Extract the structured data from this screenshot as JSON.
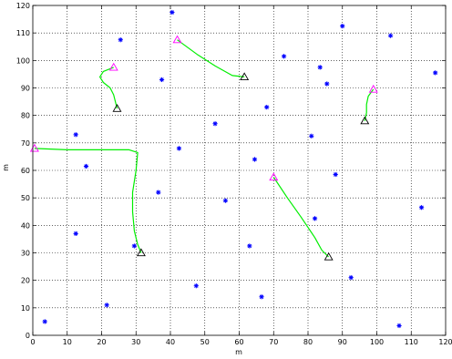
{
  "chart_data": {
    "type": "scatter",
    "title": "",
    "xlabel": "m",
    "ylabel": "m",
    "xlim": [
      0,
      120
    ],
    "ylim": [
      0,
      120
    ],
    "xticks": [
      0,
      10,
      20,
      30,
      40,
      50,
      60,
      70,
      80,
      90,
      100,
      110,
      120
    ],
    "yticks": [
      0,
      10,
      20,
      30,
      40,
      50,
      60,
      70,
      80,
      90,
      100,
      110,
      120
    ],
    "grid": true,
    "grid_style": "dotted",
    "colors": {
      "points": "#0000ff",
      "paths": "#00ee00",
      "start_markers": "#ff00ff",
      "end_markers": "#000000"
    },
    "series": [
      {
        "marker": "asterisk",
        "points": [
          [
            3.5,
            5
          ],
          [
            12.5,
            73
          ],
          [
            12.5,
            37
          ],
          [
            15.5,
            61.5
          ],
          [
            21.5,
            11
          ],
          [
            25.5,
            107.5
          ],
          [
            29.5,
            32.5
          ],
          [
            36.5,
            52
          ],
          [
            37.5,
            93
          ],
          [
            40.5,
            117.5
          ],
          [
            42.5,
            68
          ],
          [
            47.5,
            18
          ],
          [
            53,
            77
          ],
          [
            56,
            49
          ],
          [
            63,
            32.5
          ],
          [
            64.5,
            64
          ],
          [
            66.5,
            14
          ],
          [
            68,
            83
          ],
          [
            73,
            101.5
          ],
          [
            81,
            72.5
          ],
          [
            82,
            42.5
          ],
          [
            83.5,
            97.5
          ],
          [
            85.5,
            91.5
          ],
          [
            88,
            58.5
          ],
          [
            90,
            112.5
          ],
          [
            92.5,
            21
          ],
          [
            104,
            109
          ],
          [
            106.5,
            3.5
          ],
          [
            113,
            46.5
          ],
          [
            117,
            95.5
          ]
        ]
      },
      {
        "marker": "triangle-path",
        "paths": [
          {
            "start": [
              23.5,
              97.5
            ],
            "end": [
              24.5,
              82.5
            ],
            "path": [
              [
                23.5,
                97.5
              ],
              [
                20.5,
                96
              ],
              [
                19.5,
                94
              ],
              [
                20.5,
                92
              ],
              [
                22.5,
                90
              ],
              [
                23.5,
                87.5
              ],
              [
                24,
                85
              ],
              [
                24.5,
                82.5
              ]
            ]
          },
          {
            "start": [
              42,
              107.5
            ],
            "end": [
              61.5,
              94
            ],
            "path": [
              [
                42,
                107.5
              ],
              [
                48,
                102
              ],
              [
                53,
                98
              ],
              [
                58,
                94.5
              ],
              [
                61.5,
                94
              ]
            ]
          },
          {
            "start": [
              0.5,
              68
            ],
            "end": [
              31.5,
              30
            ],
            "path": [
              [
                0.5,
                68
              ],
              [
                10,
                67.5
              ],
              [
                20,
                67.5
              ],
              [
                28,
                67.5
              ],
              [
                30.5,
                66.5
              ],
              [
                30,
                60
              ],
              [
                29,
                52
              ],
              [
                29,
                45
              ],
              [
                29.5,
                38
              ],
              [
                30.5,
                33
              ],
              [
                31.5,
                30
              ]
            ]
          },
          {
            "start": [
              70,
              57.5
            ],
            "end": [
              86,
              28.5
            ],
            "path": [
              [
                70,
                57.5
              ],
              [
                74,
                50
              ],
              [
                78,
                43
              ],
              [
                82,
                35.5
              ],
              [
                84,
                31
              ],
              [
                86,
                28.5
              ]
            ]
          },
          {
            "start": [
              99,
              89.5
            ],
            "end": [
              96.5,
              78
            ],
            "path": [
              [
                99,
                89.5
              ],
              [
                97.5,
                87
              ],
              [
                97,
                84
              ],
              [
                97,
                81
              ],
              [
                96.5,
                78
              ]
            ]
          }
        ]
      }
    ]
  }
}
